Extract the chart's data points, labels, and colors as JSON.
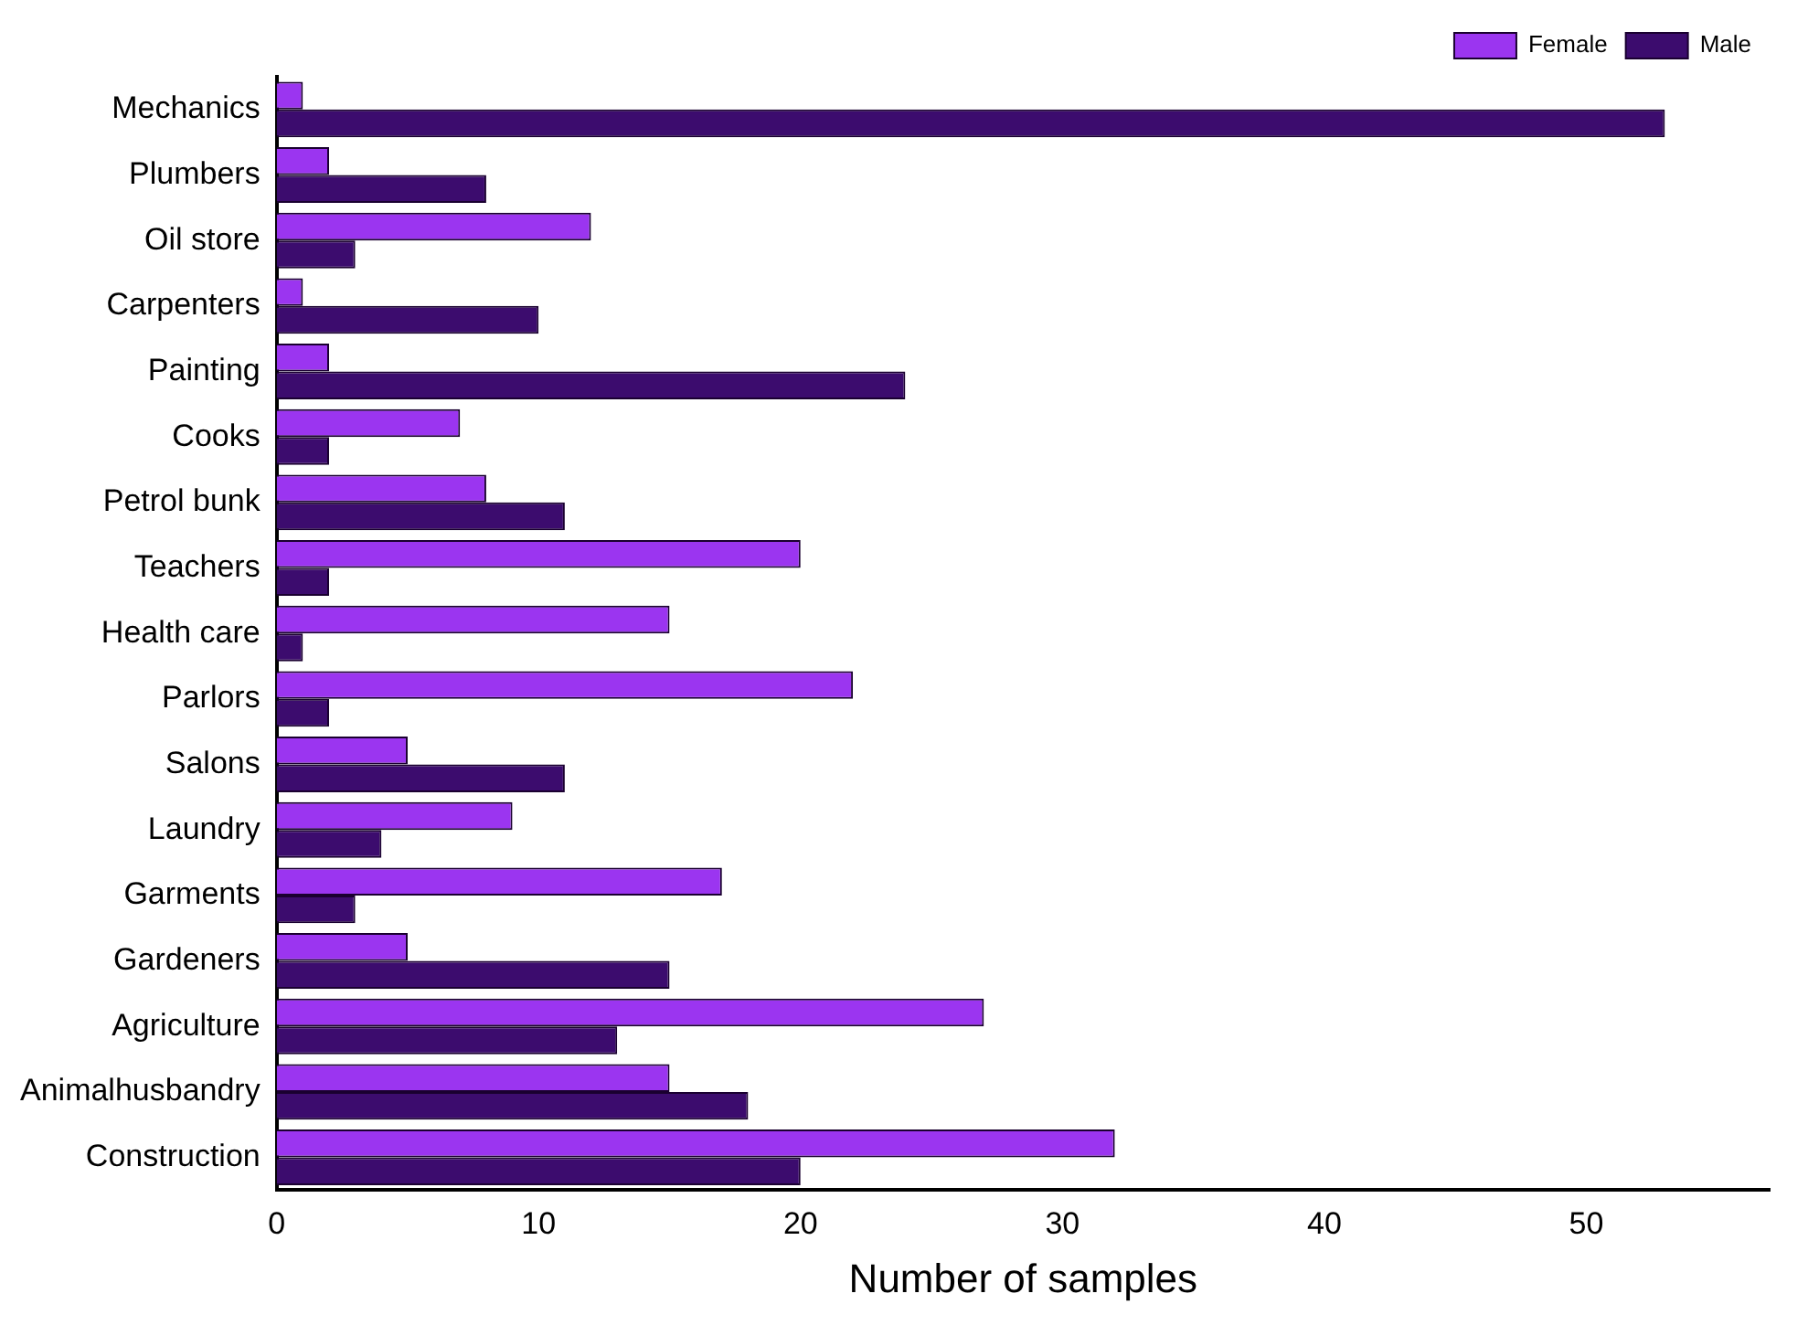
{
  "chart_data": {
    "type": "bar",
    "orientation": "horizontal",
    "xlabel": "Number of samples",
    "categories": [
      "Mechanics",
      "Plumbers",
      "Oil store",
      "Carpenters",
      "Painting",
      "Cooks",
      "Petrol bunk",
      "Teachers",
      "Health care",
      "Parlors",
      "Salons",
      "Laundry",
      "Garments",
      "Gardeners",
      "Agriculture",
      "Animalhusbandry",
      "Construction"
    ],
    "series": [
      {
        "name": "Female",
        "color": "#9b35f0",
        "values": [
          1,
          2,
          12,
          1,
          2,
          7,
          8,
          20,
          15,
          22,
          5,
          9,
          17,
          5,
          27,
          15,
          32
        ]
      },
      {
        "name": "Male",
        "color": "#3c0c6e",
        "values": [
          53,
          8,
          3,
          10,
          24,
          2,
          11,
          2,
          1,
          2,
          11,
          4,
          3,
          15,
          13,
          18,
          20
        ]
      }
    ],
    "xlim": [
      0,
      57
    ],
    "xticks": [
      0,
      10,
      20,
      30,
      40,
      50
    ],
    "grid": false,
    "legend": "top right"
  }
}
